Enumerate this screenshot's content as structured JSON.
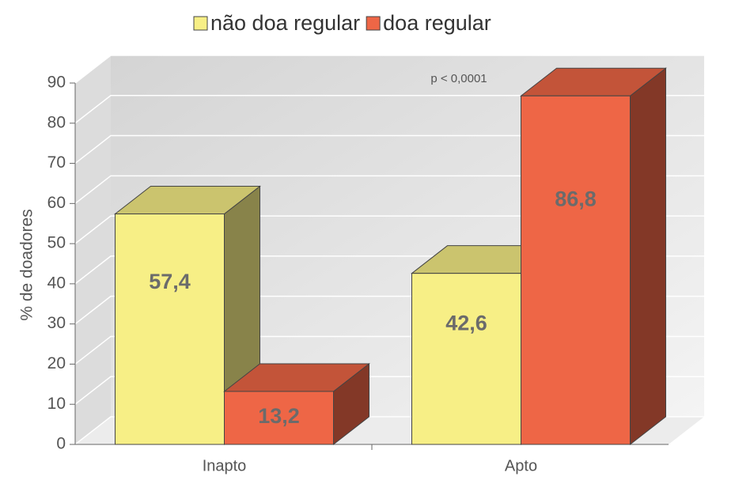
{
  "chart_data": {
    "type": "bar3d",
    "annotation": "p < 0,0001",
    "y_label": "% de doadores",
    "categories": [
      "Inapto",
      "Apto"
    ],
    "series": [
      {
        "name": "não doa regular",
        "color": "#f7ef86",
        "values": [
          57.4,
          42.6
        ],
        "value_labels": [
          "57,4",
          "42,6"
        ]
      },
      {
        "name": "doa regular",
        "color": "#ee6646",
        "values": [
          13.2,
          86.8
        ],
        "value_labels": [
          "13,2",
          "86,8"
        ]
      }
    ],
    "ylim": [
      0,
      90
    ],
    "yticks": [
      0,
      10,
      20,
      30,
      40,
      50,
      60,
      70,
      80,
      90
    ],
    "grid": true
  }
}
